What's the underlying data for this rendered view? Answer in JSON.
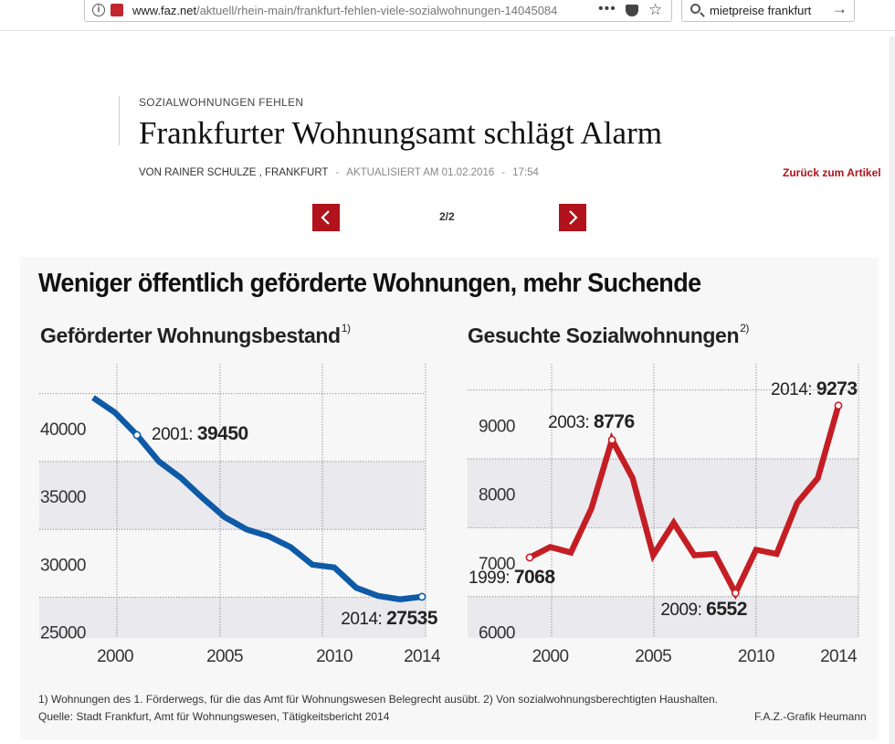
{
  "browser": {
    "url_domain": "www.faz.net",
    "url_path": "/aktuell/rhein-main/frankfurt-fehlen-viele-sozialwohnungen-14045084",
    "search_query": "mietpreise frankfurt"
  },
  "article": {
    "kicker": "SOZIALWOHNUNGEN FEHLEN",
    "headline": "Frankfurter Wohnungsamt schlägt Alarm",
    "author": "VON RAINER SCHULZE , FRANKFURT",
    "sep": "-",
    "updated": "AKTUALISIERT AM 01.02.2016",
    "time": "17:54",
    "back_link": "Zurück zum Artikel",
    "pager": "2/2"
  },
  "graphic": {
    "title": "Weniger öffentlich geförderte Wohnungen, mehr Suchende",
    "footnote": "1) Wohnungen des 1. Förderwegs, für die das Amt für Wohnungswesen Belegrecht ausübt. 2) Von sozialwohnungsberechtigten Haushalten.",
    "source": "Quelle: Stadt Frankfurt, Amt für Wohnungswesen, Tätigkeitsbericht 2014",
    "credit": "F.A.Z.-Grafik Heumann"
  },
  "colors": {
    "accent": "#b1121b",
    "left_line": "#0e5aa7",
    "right_line": "#c41e24",
    "band": "#e9e9ee",
    "grid": "#8c8c8c"
  },
  "chart_data": [
    {
      "type": "line",
      "title": "Geförderter Wohnungsbestand",
      "title_note": "1)",
      "x": [
        1999,
        2000,
        2001,
        2002,
        2003,
        2004,
        2005,
        2006,
        2007,
        2008,
        2009,
        2010,
        2011,
        2012,
        2013,
        2014
      ],
      "values": [
        42200,
        41100,
        39450,
        37500,
        36300,
        34800,
        33400,
        32500,
        32000,
        31200,
        29900,
        29700,
        28200,
        27600,
        27350,
        27535
      ],
      "xticks": [
        2000,
        2005,
        2010,
        2014
      ],
      "yticks": [
        25000,
        30000,
        35000,
        40000
      ],
      "ylim": [
        24500,
        44700
      ],
      "annotations": [
        {
          "year": 2001,
          "prefix": "2001:",
          "value": "39450"
        },
        {
          "year": 2014,
          "prefix": "2014:",
          "value": "27535"
        }
      ]
    },
    {
      "type": "line",
      "title": "Gesuchte Sozialwohnungen",
      "title_note": "2)",
      "x": [
        1999,
        2000,
        2001,
        2002,
        2003,
        2004,
        2005,
        2006,
        2007,
        2008,
        2009,
        2010,
        2011,
        2012,
        2013,
        2014
      ],
      "values": [
        7068,
        7220,
        7140,
        7780,
        8776,
        8220,
        7100,
        7570,
        7100,
        7120,
        6552,
        7180,
        7120,
        7860,
        8220,
        9273
      ],
      "xticks": [
        2000,
        2005,
        2010,
        2014
      ],
      "yticks": [
        6000,
        7000,
        8000,
        9000
      ],
      "ylim": [
        5900,
        9880
      ],
      "annotations": [
        {
          "year": 1999,
          "prefix": "1999:",
          "value": "7068"
        },
        {
          "year": 2003,
          "prefix": "2003:",
          "value": "8776"
        },
        {
          "year": 2009,
          "prefix": "2009:",
          "value": "6552"
        },
        {
          "year": 2014,
          "prefix": "2014:",
          "value": "9273"
        }
      ]
    }
  ]
}
